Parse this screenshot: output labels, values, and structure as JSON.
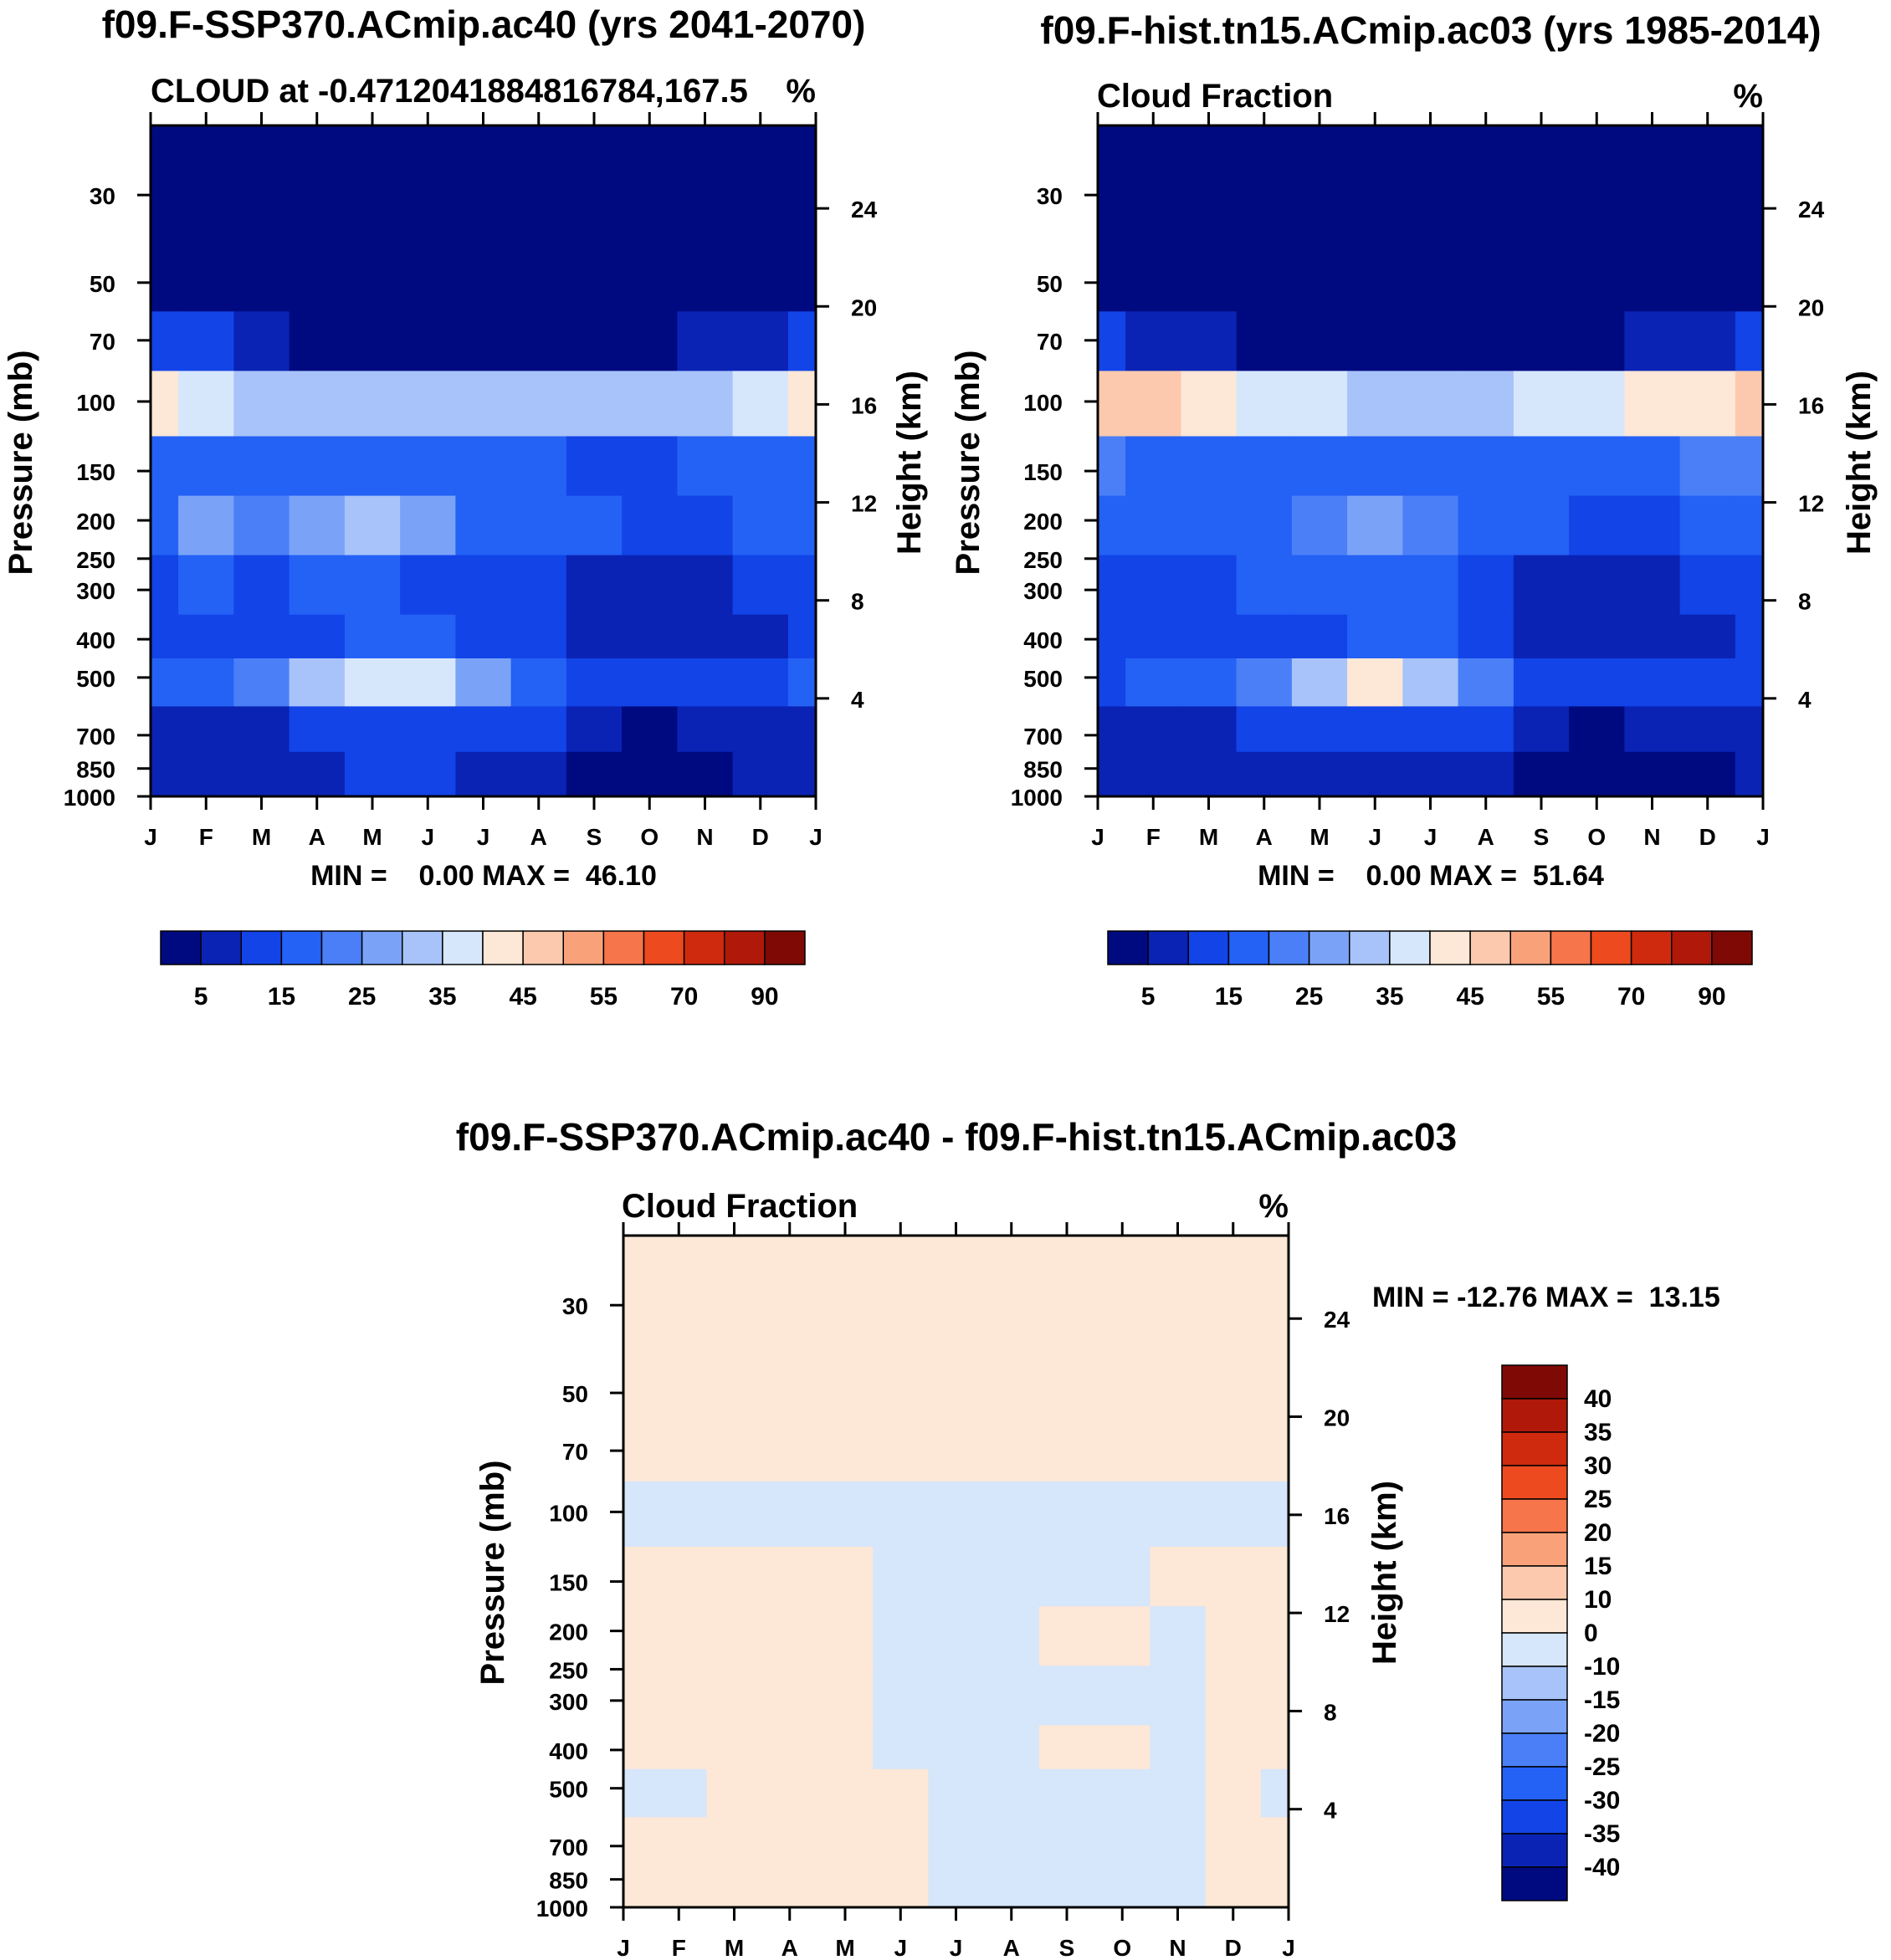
{
  "colors": {
    "cloud_scale": [
      "#000a80",
      "#0a23b5",
      "#1244e8",
      "#2461f5",
      "#4a7ff7",
      "#7aa3f8",
      "#a7c3f9",
      "#d6e6fb",
      "#fde7d6",
      "#fcc9ae",
      "#f9a27a",
      "#f6754a",
      "#ee4a1f",
      "#cf2a0e",
      "#b0190a",
      "#7f0a05"
    ],
    "diff_scale": [
      "#000a80",
      "#0a23b5",
      "#1244e8",
      "#2461f5",
      "#4a7ff7",
      "#7aa3f8",
      "#a7c3f9",
      "#d6e6fb",
      "#fde7d6",
      "#fcc9ae",
      "#f9a27a",
      "#f6754a",
      "#ee4a1f",
      "#cf2a0e",
      "#b0190a",
      "#7f0a05"
    ]
  },
  "chart_data": [
    {
      "type": "heatmap",
      "id": "case",
      "title": "f09.F-SSP370.ACmip.ac40 (yrs 2041-2070)",
      "subtitle_left": "CLOUD at -0.4712041884816784,167.5",
      "subtitle_right": "%",
      "xlabel": "",
      "ylabel": "Pressure (mb)",
      "ylabel_right": "Height (km)",
      "x_ticks": [
        "J",
        "F",
        "M",
        "A",
        "M",
        "J",
        "J",
        "A",
        "S",
        "O",
        "N",
        "D",
        "J"
      ],
      "y_ticks": [
        "30",
        "50",
        "70",
        "100",
        "150",
        "200",
        "250",
        "300",
        "400",
        "500",
        "700",
        "850",
        "1000"
      ],
      "y_ticks_right": [
        "24",
        "20",
        "16",
        "12",
        "8",
        "4"
      ],
      "ylim": [
        1000,
        20
      ],
      "stats": "MIN =    0.00 MAX =  46.10",
      "colorbar_labels": [
        "5",
        "15",
        "25",
        "35",
        "45",
        "55",
        "70",
        "90"
      ],
      "levels": [
        30,
        50,
        70,
        100,
        150,
        200,
        300,
        400,
        500,
        700,
        850
      ],
      "values": [
        [
          0,
          0,
          0,
          0,
          0,
          0,
          0,
          0,
          0,
          0,
          0,
          0,
          0
        ],
        [
          3,
          2,
          1,
          0,
          0,
          0,
          0,
          0,
          0,
          0,
          0,
          1,
          3
        ],
        [
          12,
          10,
          8,
          4,
          3,
          2,
          2,
          3,
          3,
          4,
          6,
          9,
          12
        ],
        [
          40,
          36,
          33,
          30,
          31,
          32,
          32,
          33,
          30,
          32,
          34,
          37,
          40
        ],
        [
          18,
          19,
          16,
          16,
          17,
          17,
          18,
          16,
          13,
          14,
          17,
          18,
          18
        ],
        [
          18,
          25,
          24,
          28,
          31,
          25,
          19,
          18,
          15,
          14,
          13,
          15,
          18
        ],
        [
          14,
          15,
          14,
          16,
          16,
          14,
          13,
          12,
          9,
          8,
          8,
          10,
          14
        ],
        [
          13,
          12,
          12,
          14,
          15,
          16,
          14,
          12,
          9,
          8,
          8,
          9,
          13
        ],
        [
          17,
          17,
          22,
          30,
          35,
          38,
          28,
          18,
          12,
          10,
          12,
          14,
          17
        ],
        [
          8,
          8,
          9,
          12,
          13,
          13,
          12,
          10,
          6,
          4,
          5,
          7,
          8
        ],
        [
          7,
          7,
          6,
          9,
          10,
          10,
          9,
          7,
          4,
          2,
          2,
          5,
          7
        ]
      ]
    },
    {
      "type": "heatmap",
      "id": "control",
      "title": "f09.F-hist.tn15.ACmip.ac03 (yrs 1985-2014)",
      "subtitle_left": "Cloud Fraction",
      "subtitle_right": "%",
      "xlabel": "",
      "ylabel": "Pressure (mb)",
      "ylabel_right": "Height (km)",
      "x_ticks": [
        "J",
        "F",
        "M",
        "A",
        "M",
        "J",
        "J",
        "A",
        "S",
        "O",
        "N",
        "D",
        "J"
      ],
      "y_ticks": [
        "30",
        "50",
        "70",
        "100",
        "150",
        "200",
        "250",
        "300",
        "400",
        "500",
        "700",
        "850",
        "1000"
      ],
      "y_ticks_right": [
        "24",
        "20",
        "16",
        "12",
        "8",
        "4"
      ],
      "ylim": [
        1000,
        20
      ],
      "stats": "MIN =    0.00 MAX =  51.64",
      "colorbar_labels": [
        "5",
        "15",
        "25",
        "35",
        "45",
        "55",
        "70",
        "90"
      ],
      "levels": [
        30,
        50,
        70,
        100,
        150,
        200,
        300,
        400,
        500,
        700,
        850
      ],
      "values": [
        [
          0,
          0,
          0,
          0,
          0,
          0,
          0,
          0,
          0,
          0,
          0,
          0,
          0
        ],
        [
          2,
          1,
          1,
          0,
          0,
          0,
          0,
          0,
          0,
          0,
          0,
          1,
          2
        ],
        [
          10,
          8,
          7,
          3,
          2,
          2,
          2,
          2,
          2,
          3,
          5,
          8,
          10
        ],
        [
          46,
          48,
          42,
          37,
          36,
          34,
          34,
          34,
          36,
          38,
          40,
          44,
          46
        ],
        [
          20,
          19,
          18,
          18,
          18,
          17,
          18,
          18,
          18,
          19,
          19,
          20,
          20
        ],
        [
          17,
          19,
          19,
          19,
          20,
          26,
          22,
          17,
          15,
          14,
          13,
          15,
          17
        ],
        [
          12,
          13,
          14,
          15,
          15,
          16,
          16,
          13,
          9,
          8,
          8,
          10,
          12
        ],
        [
          10,
          11,
          11,
          13,
          14,
          15,
          15,
          13,
          9,
          8,
          7,
          9,
          10
        ],
        [
          14,
          15,
          18,
          24,
          32,
          40,
          30,
          20,
          12,
          11,
          12,
          13,
          14
        ],
        [
          7,
          8,
          9,
          11,
          12,
          13,
          12,
          10,
          6,
          4,
          5,
          6,
          7
        ],
        [
          5,
          6,
          6,
          7,
          8,
          8,
          8,
          7,
          3,
          2,
          2,
          4,
          5
        ]
      ]
    },
    {
      "type": "heatmap",
      "id": "difference",
      "title": "f09.F-SSP370.ACmip.ac40 - f09.F-hist.tn15.ACmip.ac03",
      "subtitle_left": "Cloud Fraction",
      "subtitle_right": "%",
      "xlabel": "",
      "ylabel": "Pressure (mb)",
      "ylabel_right": "Height (km)",
      "x_ticks": [
        "J",
        "F",
        "M",
        "A",
        "M",
        "J",
        "J",
        "A",
        "S",
        "O",
        "N",
        "D",
        "J"
      ],
      "y_ticks": [
        "30",
        "50",
        "70",
        "100",
        "150",
        "200",
        "250",
        "300",
        "400",
        "500",
        "700",
        "850",
        "1000"
      ],
      "y_ticks_right": [
        "24",
        "20",
        "16",
        "12",
        "8",
        "4"
      ],
      "ylim": [
        1000,
        20
      ],
      "stats": "MIN = -12.76 MAX =  13.15",
      "colorbar_labels": [
        "40",
        "35",
        "30",
        "25",
        "20",
        "15",
        "10",
        "0",
        "-10",
        "-15",
        "-20",
        "-25",
        "-30",
        "-35",
        "-40"
      ],
      "levels": [
        30,
        50,
        70,
        100,
        150,
        200,
        300,
        400,
        500,
        700,
        850
      ],
      "values": [
        [
          1,
          1,
          1,
          1,
          1,
          1,
          1,
          1,
          1,
          1,
          1,
          1,
          1
        ],
        [
          1,
          1,
          1,
          1,
          1,
          1,
          1,
          1,
          1,
          1,
          1,
          1,
          1
        ],
        [
          2,
          2,
          1,
          1,
          1,
          1,
          1,
          1,
          1,
          1,
          1,
          2,
          2
        ],
        [
          -3,
          -5,
          -4,
          -4,
          -5,
          -5,
          -5,
          -4,
          -5,
          -4,
          -4,
          -4,
          -3
        ],
        [
          2,
          2,
          2,
          2,
          2,
          -2,
          -3,
          -2,
          -3,
          -2,
          2,
          2,
          2
        ],
        [
          2,
          2,
          3,
          3,
          3,
          -2,
          -3,
          -2,
          3,
          3,
          -2,
          2,
          2
        ],
        [
          2,
          2,
          2,
          2,
          2,
          -2,
          -3,
          -2,
          -2,
          -2,
          -2,
          2,
          2
        ],
        [
          2,
          2,
          2,
          2,
          2,
          -2,
          -2,
          -2,
          3,
          3,
          -2,
          2,
          2
        ],
        [
          -2,
          -2,
          2,
          2,
          2,
          2,
          -2,
          -2,
          -2,
          -2,
          -2,
          2,
          -2
        ],
        [
          2,
          2,
          2,
          2,
          2,
          2,
          -2,
          -2,
          -2,
          -2,
          -2,
          2,
          2
        ],
        [
          2,
          2,
          2,
          2,
          2,
          2,
          -2,
          -2,
          -2,
          -2,
          -2,
          2,
          2
        ]
      ]
    }
  ]
}
